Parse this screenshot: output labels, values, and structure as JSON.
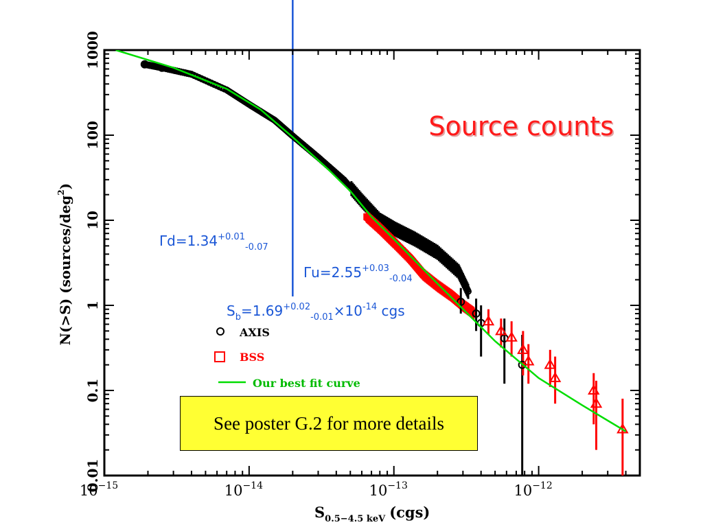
{
  "chart_data": {
    "type": "scatter",
    "title": "Source counts",
    "xlabel": "S",
    "xlabel_sub": "0.5−4.5 keV",
    "xlabel_unit": "(cgs)",
    "ylabel": "N(>S) (sources/deg",
    "ylabel_sup": "2",
    "ylabel_close": ")",
    "x_scale": "log",
    "y_scale": "log",
    "xlim": [
      1e-15,
      5e-12
    ],
    "ylim": [
      0.01,
      1000
    ],
    "x_ticks": [
      {
        "value": 1e-15,
        "mant": "10",
        "exp": "−15"
      },
      {
        "value": 1e-14,
        "mant": "10",
        "exp": "−14"
      },
      {
        "value": 1e-13,
        "mant": "10",
        "exp": "−13"
      },
      {
        "value": 1e-12,
        "mant": "10",
        "exp": "−12"
      }
    ],
    "y_ticks": [
      {
        "value": 0.01,
        "label": "0.01"
      },
      {
        "value": 0.1,
        "label": "0.1"
      },
      {
        "value": 1,
        "label": "1"
      },
      {
        "value": 10,
        "label": "10"
      },
      {
        "value": 100,
        "label": "100"
      },
      {
        "value": 1000,
        "label": "1000"
      }
    ],
    "legend_position": "center-left",
    "series": [
      {
        "name": "AXIS",
        "marker": "circle",
        "color": "#000000",
        "band": [
          [
            1.9e-15,
            680
          ],
          [
            2.5e-15,
            620
          ],
          [
            4e-15,
            520
          ],
          [
            7e-15,
            340
          ],
          [
            1e-14,
            230
          ],
          [
            1.5e-14,
            150
          ],
          [
            2e-14,
            98
          ],
          [
            3e-14,
            55
          ],
          [
            4.5e-14,
            30
          ],
          [
            6e-14,
            17
          ],
          [
            8e-14,
            10
          ],
          [
            1e-13,
            8
          ],
          [
            1.4e-13,
            6
          ],
          [
            2e-13,
            4.2
          ],
          [
            2.8e-13,
            2.5
          ],
          [
            3.3e-13,
            1.4
          ]
        ],
        "points": [
          {
            "x": 1.9e-15,
            "y": 680,
            "err_lo": 680,
            "err_hi": 680
          },
          {
            "x": 2.5e-15,
            "y": 620,
            "err_lo": 620,
            "err_hi": 620
          },
          {
            "x": 2.9e-13,
            "y": 1.1,
            "err_lo": 0.8,
            "err_hi": 1.6
          },
          {
            "x": 3.7e-13,
            "y": 0.8,
            "err_lo": 0.5,
            "err_hi": 1.2
          },
          {
            "x": 4e-13,
            "y": 0.62,
            "err_lo": 0.25,
            "err_hi": 1.0
          },
          {
            "x": 5.8e-13,
            "y": 0.41,
            "err_lo": 0.12,
            "err_hi": 0.7
          },
          {
            "x": 7.7e-13,
            "y": 0.2,
            "err_lo": 0.01,
            "err_hi": 0.45
          }
        ]
      },
      {
        "name": "BSS",
        "marker": "square",
        "color": "#ff0000",
        "band": [
          [
            6.5e-14,
            11
          ],
          [
            8e-14,
            8
          ],
          [
            1e-13,
            5.5
          ],
          [
            1.3e-13,
            3.5
          ],
          [
            1.6e-13,
            2.3
          ],
          [
            2e-13,
            1.7
          ],
          [
            2.5e-13,
            1.3
          ],
          [
            3e-13,
            1.0
          ],
          [
            3.6e-13,
            0.8
          ]
        ],
        "points": [
          {
            "x": 4.5e-13,
            "y": 0.65,
            "err_lo": 0.45,
            "err_hi": 0.9,
            "m": "tri"
          },
          {
            "x": 5.5e-13,
            "y": 0.5,
            "err_lo": 0.32,
            "err_hi": 0.7,
            "m": "tri"
          },
          {
            "x": 6.5e-13,
            "y": 0.42,
            "err_lo": 0.25,
            "err_hi": 0.65,
            "m": "tri"
          },
          {
            "x": 7.8e-13,
            "y": 0.3,
            "err_lo": 0.15,
            "err_hi": 0.5,
            "m": "tri"
          },
          {
            "x": 8.5e-13,
            "y": 0.22,
            "err_lo": 0.12,
            "err_hi": 0.35,
            "m": "tri"
          },
          {
            "x": 1.2e-12,
            "y": 0.2,
            "err_lo": 0.11,
            "err_hi": 0.3,
            "m": "tri"
          },
          {
            "x": 1.3e-12,
            "y": 0.14,
            "err_lo": 0.07,
            "err_hi": 0.25,
            "m": "tri"
          },
          {
            "x": 2.4e-12,
            "y": 0.1,
            "err_lo": 0.04,
            "err_hi": 0.16,
            "m": "tri"
          },
          {
            "x": 2.5e-12,
            "y": 0.07,
            "err_lo": 0.02,
            "err_hi": 0.13,
            "m": "tri"
          },
          {
            "x": 3.8e-12,
            "y": 0.035,
            "err_lo": 0.01,
            "err_hi": 0.08,
            "m": "tri"
          }
        ]
      },
      {
        "name": "Our best fit curve",
        "marker": "line",
        "color": "#00dd00",
        "points": [
          {
            "x": 1.2e-15,
            "y": 1000
          },
          {
            "x": 3e-15,
            "y": 620
          },
          {
            "x": 7e-15,
            "y": 350
          },
          {
            "x": 1.2e-14,
            "y": 200
          },
          {
            "x": 2e-14,
            "y": 95
          },
          {
            "x": 3.5e-14,
            "y": 40
          },
          {
            "x": 5e-14,
            "y": 22
          },
          {
            "x": 7e-14,
            "y": 11
          },
          {
            "x": 1e-13,
            "y": 6
          },
          {
            "x": 2e-13,
            "y": 1.8
          },
          {
            "x": 5e-13,
            "y": 0.38
          },
          {
            "x": 1e-12,
            "y": 0.14
          },
          {
            "x": 2e-12,
            "y": 0.067
          },
          {
            "x": 4e-12,
            "y": 0.033
          }
        ]
      }
    ],
    "break_line": {
      "x": 2e-14,
      "color": "#1a56d6"
    },
    "annotations": {
      "gamma_d": {
        "text": "Γd=1.34",
        "sup": "+0.01",
        "sub": "-0.07"
      },
      "gamma_u": {
        "text": "Γu=2.55",
        "sup": "+0.03",
        "sub": "-0.04"
      },
      "sb": {
        "pre": "S",
        "pre_sub": "b",
        "eq": "=1.69",
        "sup": "+0.02",
        "sub": "-0.01",
        "times": "×10",
        "exp": "-14",
        "unit": " cgs"
      }
    },
    "colors": {
      "title": "#ff1a1a",
      "annotation": "#1a56d6",
      "poster_bg": "#ffff33"
    }
  },
  "poster": {
    "text": "See poster G.2 for more details"
  }
}
